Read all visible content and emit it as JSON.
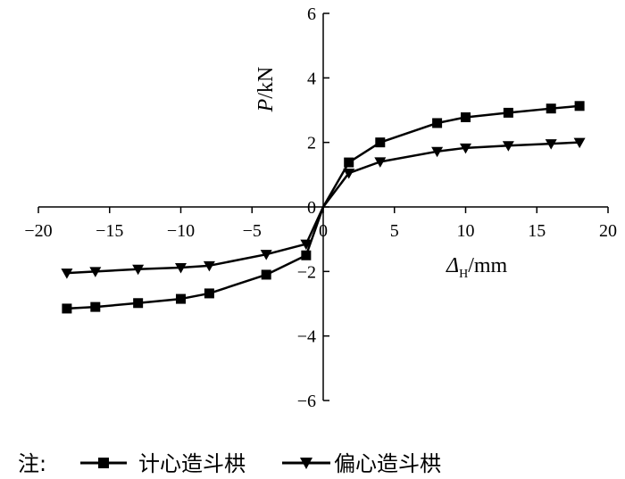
{
  "chart_data": {
    "type": "line",
    "xlabel": {
      "symbol": "Δ",
      "subscript": "H",
      "unit": "/mm"
    },
    "ylabel": {
      "symbol": "P",
      "unit": "/kN"
    },
    "xlim": [
      -20,
      20
    ],
    "ylim": [
      -6,
      6
    ],
    "x_ticks": [
      -20,
      -15,
      -10,
      -5,
      0,
      5,
      10,
      15,
      20
    ],
    "y_ticks": [
      -6,
      -4,
      -2,
      0,
      2,
      4,
      6
    ],
    "x_tick_labels": [
      "−20",
      "−15",
      "−10",
      "−5",
      "0",
      "5",
      "10",
      "15",
      "20"
    ],
    "y_tick_labels": [
      "−6",
      "−4",
      "−2",
      "0",
      "2",
      "4",
      "6"
    ],
    "grid": false,
    "legend_position": "bottom-left",
    "legend_prefix": "注:",
    "series": [
      {
        "name": "计心造斗栱",
        "marker": "square",
        "color": "#000000",
        "x": [
          -18,
          -16,
          -13,
          -10,
          -8,
          -4,
          -1.2,
          0,
          1.8,
          4,
          8,
          10,
          13,
          16,
          18
        ],
        "y": [
          -3.15,
          -3.1,
          -2.98,
          -2.85,
          -2.68,
          -2.1,
          -1.5,
          0,
          1.38,
          2.0,
          2.6,
          2.78,
          2.92,
          3.05,
          3.13
        ]
      },
      {
        "name": "偏心造斗栱",
        "marker": "triangle-down",
        "color": "#000000",
        "x": [
          -18,
          -16,
          -13,
          -10,
          -8,
          -4,
          -1.2,
          0,
          1.8,
          4,
          8,
          10,
          13,
          16,
          18
        ],
        "y": [
          -2.05,
          -2.0,
          -1.93,
          -1.88,
          -1.82,
          -1.47,
          -1.15,
          0,
          1.05,
          1.4,
          1.72,
          1.83,
          1.9,
          1.96,
          2.0
        ]
      }
    ]
  }
}
